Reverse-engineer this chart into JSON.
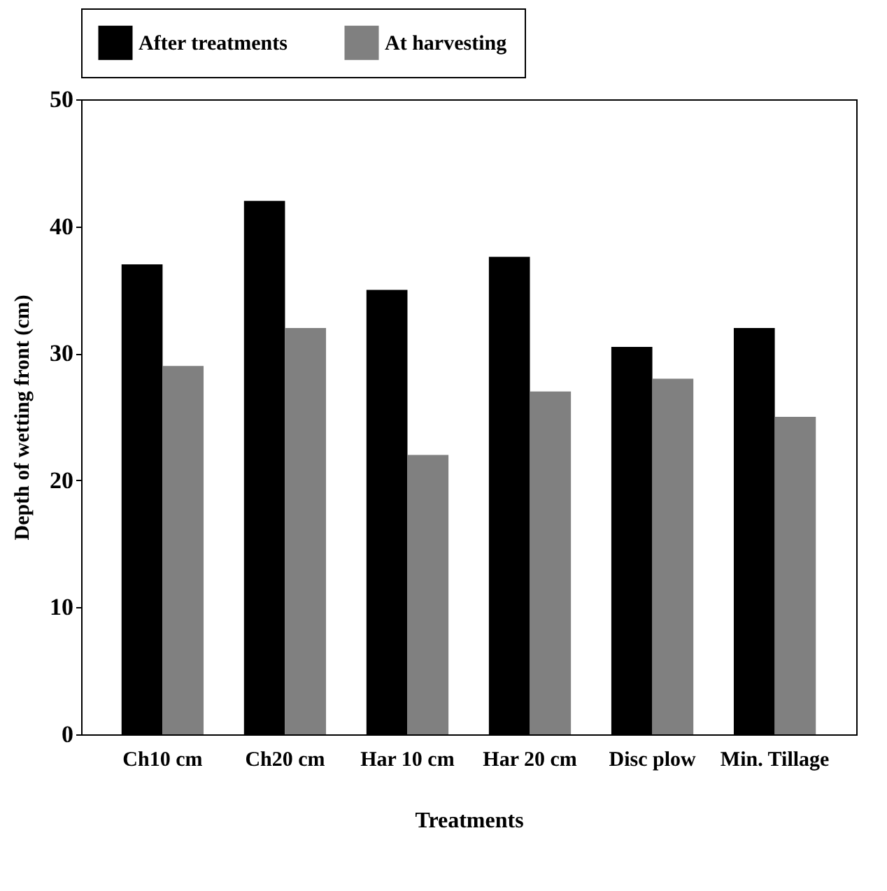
{
  "chart_data": {
    "type": "bar",
    "xlabel": "Treatments",
    "ylabel": "Depth of wetting front (cm)",
    "categories": [
      "Ch10 cm",
      "Ch20 cm",
      "Har 10 cm",
      "Har 20 cm",
      "Disc plow",
      "Min. Tillage"
    ],
    "series": [
      {
        "name": "After treatments",
        "color": "#000000",
        "values": [
          37,
          42,
          35,
          37.6,
          30.5,
          32
        ]
      },
      {
        "name": "At harvesting",
        "color": "#808080",
        "values": [
          29,
          32,
          22,
          27,
          28,
          25
        ]
      }
    ],
    "ylim": [
      0,
      50
    ],
    "yticks": [
      0,
      10,
      20,
      30,
      40,
      50
    ],
    "grid": false,
    "legend": "top"
  }
}
